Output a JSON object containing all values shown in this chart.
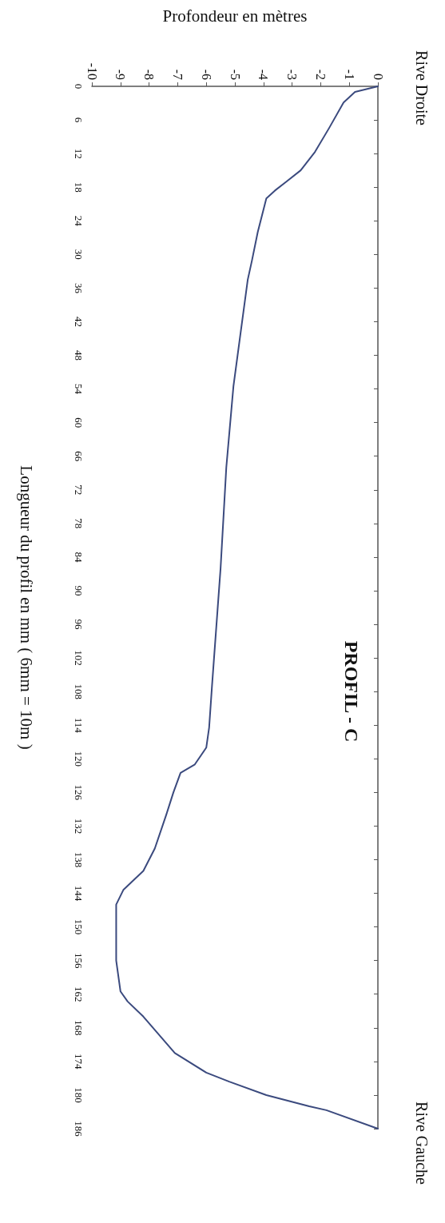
{
  "chart_data": {
    "type": "line",
    "title": "PROFIL - C",
    "xlabel": "Profondeur en mètres",
    "ylabel": "Longueur du profil en mm ( 6mm = 10m )",
    "annotations": [
      "Rive Droite",
      "Rive Gauche"
    ],
    "x": [
      0,
      -0.8,
      -1.2,
      -1.7,
      -2.2,
      -2.7,
      -3.2,
      -3.6,
      -3.9,
      -4.2,
      -4.4,
      -4.55,
      -4.8,
      -5.05,
      -5.3,
      -5.5,
      -5.8,
      -5.9,
      -6.0,
      -6.4,
      -6.9,
      -7.15,
      -7.4,
      -7.8,
      -8.2,
      -8.9,
      -9.15,
      -9.15,
      -9.15,
      -9.0,
      -8.75,
      -8.2,
      -7.1,
      -6.0,
      -5.2,
      -3.9,
      -2.4,
      -1.8,
      0
    ],
    "series": [
      {
        "color": "#3b4a7e",
        "values": [
          0,
          1,
          2.9,
          7.4,
          11.7,
          15,
          17,
          18.6,
          20,
          26,
          31,
          34.5,
          44,
          53.5,
          68,
          86,
          107,
          114.4,
          118,
          121,
          122.5,
          126,
          130,
          136,
          140,
          143.4,
          146,
          150,
          156,
          161.5,
          163.3,
          166,
          172.5,
          176,
          177.6,
          180,
          182,
          182.7,
          186
        ]
      }
    ],
    "ylim": [
      186,
      0
    ],
    "yticks": [
      0,
      6,
      12,
      18,
      24,
      30,
      36,
      42,
      48,
      54,
      60,
      66,
      72,
      78,
      84,
      90,
      96,
      102,
      108,
      114,
      120,
      126,
      132,
      138,
      144,
      150,
      156,
      162,
      168,
      174,
      180,
      186
    ],
    "xlim": [
      -10,
      0
    ],
    "xticks": [
      -10,
      -9,
      -8,
      -7,
      -6,
      -5,
      -4,
      -3,
      -2,
      -1,
      0
    ],
    "grid": false,
    "marker": "none",
    "line_style": "solid"
  }
}
